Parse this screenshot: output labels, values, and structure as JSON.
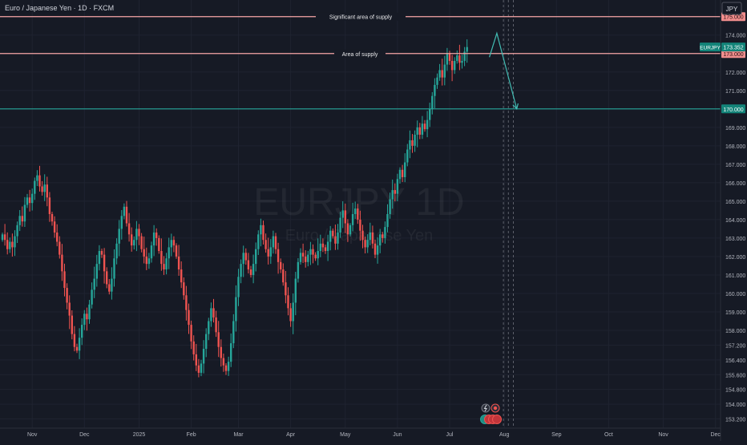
{
  "header": {
    "title": "Euro / Japanese Yen · 1D · FXCM",
    "currency_button": "JPY"
  },
  "watermark": {
    "symbol": "EURJPY 1D",
    "name": "Euro / Japanese Yen"
  },
  "colors": {
    "background": "#161a25",
    "up": "#26a69a",
    "down": "#ef5350",
    "supply_line": "#f7a6a6",
    "target_line": "#26a69a",
    "projection": "#42bdb4",
    "axis_text": "#b2b5be"
  },
  "chart_data": {
    "type": "candlestick",
    "symbol": "EURJPY",
    "interval": "1D",
    "source": "FXCM",
    "ylim": [
      152.7,
      175.9
    ],
    "y_ticks": [
      153.2,
      154.0,
      154.8,
      155.6,
      156.4,
      157.2,
      158.0,
      159.0,
      160.0,
      161.0,
      162.0,
      163.0,
      164.0,
      165.0,
      166.0,
      167.0,
      168.0,
      169.0,
      170.0,
      171.0,
      172.0,
      173.0,
      174.0,
      175.0
    ],
    "y_tick_labels": [
      "153.200",
      "154.000",
      "154.800",
      "155.600",
      "156.400",
      "157.200",
      "158.000",
      "159.000",
      "160.000",
      "161.000",
      "162.000",
      "163.000",
      "164.000",
      "165.000",
      "166.000",
      "167.000",
      "168.000",
      "169.000",
      "170.000",
      "171.000",
      "172.000",
      "173.000",
      "174.000",
      "175.000"
    ],
    "x_ticks": [
      {
        "label": "Nov",
        "index": 12
      },
      {
        "label": "Dec",
        "index": 33
      },
      {
        "label": "2025",
        "index": 55
      },
      {
        "label": "Feb",
        "index": 76
      },
      {
        "label": "Mar",
        "index": 95
      },
      {
        "label": "Apr",
        "index": 116
      },
      {
        "label": "May",
        "index": 138
      },
      {
        "label": "Jun",
        "index": 159
      },
      {
        "label": "Jul",
        "index": 180
      },
      {
        "label": "Aug",
        "index": 202
      },
      {
        "label": "Sep",
        "index": 223
      },
      {
        "label": "Oct",
        "index": 244
      },
      {
        "label": "Nov",
        "index": 266
      },
      {
        "label": "Dec",
        "index": 287
      }
    ],
    "levels": [
      {
        "name": "Significant area of supply",
        "price": 175.0,
        "price_label": "175.000",
        "style": "supply"
      },
      {
        "name": "Area of supply",
        "price": 173.0,
        "price_label": "173.000",
        "style": "supply"
      },
      {
        "name": "",
        "price": 170.0,
        "price_label": "170.000",
        "style": "target"
      }
    ],
    "last_price": {
      "symbol": "EURJPY",
      "value": 173.352,
      "label": "173.352"
    },
    "projection": [
      {
        "index": 196,
        "price": 172.8
      },
      {
        "index": 199,
        "price": 174.1
      },
      {
        "index": 207,
        "price": 170.0
      }
    ],
    "closes": [
      163.2,
      162.9,
      162.4,
      162.8,
      162.5,
      163.1,
      163.7,
      164.2,
      163.9,
      164.8,
      165.2,
      164.9,
      165.4,
      166.1,
      166.4,
      165.8,
      165.5,
      165.9,
      165.2,
      164.3,
      163.9,
      163.3,
      162.8,
      162.1,
      161.2,
      160.3,
      159.5,
      158.8,
      157.8,
      157.1,
      156.9,
      157.6,
      158.3,
      158.9,
      158.6,
      159.4,
      160.2,
      160.8,
      161.6,
      162.3,
      162.1,
      161.2,
      160.5,
      160.1,
      160.8,
      161.9,
      162.7,
      163.5,
      164.2,
      164.7,
      163.8,
      163.2,
      162.6,
      162.9,
      163.5,
      163.1,
      162.4,
      162.0,
      161.6,
      161.9,
      162.6,
      163.3,
      163.0,
      162.3,
      161.6,
      161.3,
      161.9,
      162.5,
      162.9,
      162.6,
      162.0,
      161.3,
      160.6,
      159.9,
      159.1,
      158.3,
      157.4,
      156.7,
      156.1,
      155.7,
      156.2,
      157.0,
      157.8,
      158.5,
      159.2,
      158.7,
      157.9,
      157.1,
      156.5,
      156.1,
      155.8,
      156.3,
      157.3,
      158.5,
      159.8,
      160.9,
      161.6,
      162.2,
      161.8,
      161.3,
      161.0,
      161.6,
      162.4,
      163.2,
      163.7,
      162.9,
      162.4,
      162.0,
      162.5,
      163.1,
      162.4,
      161.7,
      161.3,
      160.6,
      159.9,
      159.2,
      158.5,
      159.5,
      160.8,
      161.7,
      162.2,
      162.0,
      161.7,
      162.1,
      162.4,
      162.1,
      161.9,
      162.3,
      162.7,
      162.5,
      162.3,
      162.8,
      163.4,
      163.1,
      162.7,
      163.3,
      164.1,
      164.5,
      163.8,
      163.2,
      163.7,
      164.3,
      164.6,
      164.0,
      163.4,
      162.9,
      162.5,
      162.9,
      163.3,
      162.7,
      162.1,
      162.6,
      163.2,
      163.0,
      163.6,
      164.3,
      165.1,
      165.6,
      165.4,
      166.2,
      166.7,
      166.3,
      167.1,
      167.8,
      168.3,
      168.0,
      168.6,
      169.0,
      168.6,
      169.2,
      168.9,
      169.4,
      170.0,
      170.7,
      171.3,
      171.7,
      172.1,
      171.7,
      172.4,
      173.0,
      172.6,
      172.1,
      172.6,
      172.9,
      172.5,
      172.6,
      173.1,
      173.35
    ],
    "last_close": 173.352
  }
}
